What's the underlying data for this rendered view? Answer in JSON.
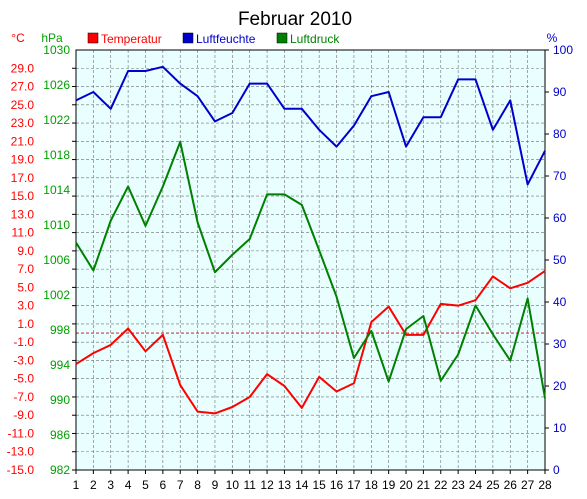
{
  "chart_data": {
    "type": "line",
    "title": "Februar 2010",
    "x": [
      1,
      2,
      3,
      4,
      5,
      6,
      7,
      8,
      9,
      10,
      11,
      12,
      13,
      14,
      15,
      16,
      17,
      18,
      19,
      20,
      21,
      22,
      23,
      24,
      25,
      26,
      27,
      28
    ],
    "axes": {
      "temperature": {
        "unit": "°C",
        "ylim": [
          -15,
          31
        ],
        "ticks": [
          "29.0",
          "27.0",
          "25.0",
          "23.0",
          "21.0",
          "19.0",
          "17.0",
          "15.0",
          "13.0",
          "11.0",
          "9.0",
          "7.0",
          "5.0",
          "3.0",
          "1.0",
          "-1.0",
          "-3.0",
          "-5.0",
          "-7.0",
          "-9.0",
          "-11.0",
          "-13.0",
          "-15.0"
        ],
        "color": "#ff0000"
      },
      "pressure": {
        "unit": "hPa",
        "ylim": [
          982,
          1030
        ],
        "ticks": [
          "1030",
          "1026",
          "1022",
          "1018",
          "1014",
          "1010",
          "1006",
          "1002",
          "998",
          "994",
          "990",
          "986",
          "982"
        ],
        "color": "#00a000"
      },
      "humidity": {
        "unit": "%",
        "ylim": [
          0,
          100
        ],
        "ticks": [
          "100",
          "90",
          "80",
          "70",
          "60",
          "50",
          "40",
          "30",
          "20",
          "10",
          "0"
        ],
        "color": "#0000cc"
      }
    },
    "series": [
      {
        "name": "Temperatur",
        "axis": "temperature",
        "color": "#ff0000",
        "values": [
          -3.4,
          -2.2,
          -1.3,
          0.5,
          -2.0,
          -0.2,
          -5.7,
          -8.6,
          -8.8,
          -8.1,
          -7.0,
          -4.5,
          -5.8,
          -8.2,
          -4.8,
          -6.4,
          -5.5,
          1.2,
          2.9,
          -0.2,
          -0.2,
          3.2,
          3.0,
          3.6,
          6.2,
          4.9,
          5.5,
          6.8
        ]
      },
      {
        "name": "Luftfeuchte",
        "axis": "humidity",
        "color": "#0000cc",
        "values": [
          88,
          90,
          86,
          95,
          95,
          96,
          92,
          89,
          83,
          85,
          92,
          92,
          86,
          86,
          81,
          77,
          82,
          89,
          90,
          77,
          84,
          84,
          93,
          93,
          81,
          88,
          68,
          76
        ]
      },
      {
        "name": "Luftdruck",
        "axis": "pressure",
        "color": "#008000",
        "values": [
          1008,
          1004.8,
          1010.5,
          1014.4,
          1009.9,
          1014.4,
          1019.5,
          1010.3,
          1004.6,
          1006.6,
          1008.4,
          1013.5,
          1013.5,
          1012.3,
          1007.1,
          1001.8,
          994.8,
          997.9,
          992.1,
          998.1,
          999.6,
          992.2,
          995.2,
          1000.8,
          997.5,
          994.5,
          1001.6,
          990.2
        ]
      }
    ],
    "reference_lines": [
      {
        "axis": "temperature",
        "value": 0,
        "color": "#cc0000",
        "style": "dashed"
      }
    ],
    "grid": true,
    "legend": "top"
  }
}
